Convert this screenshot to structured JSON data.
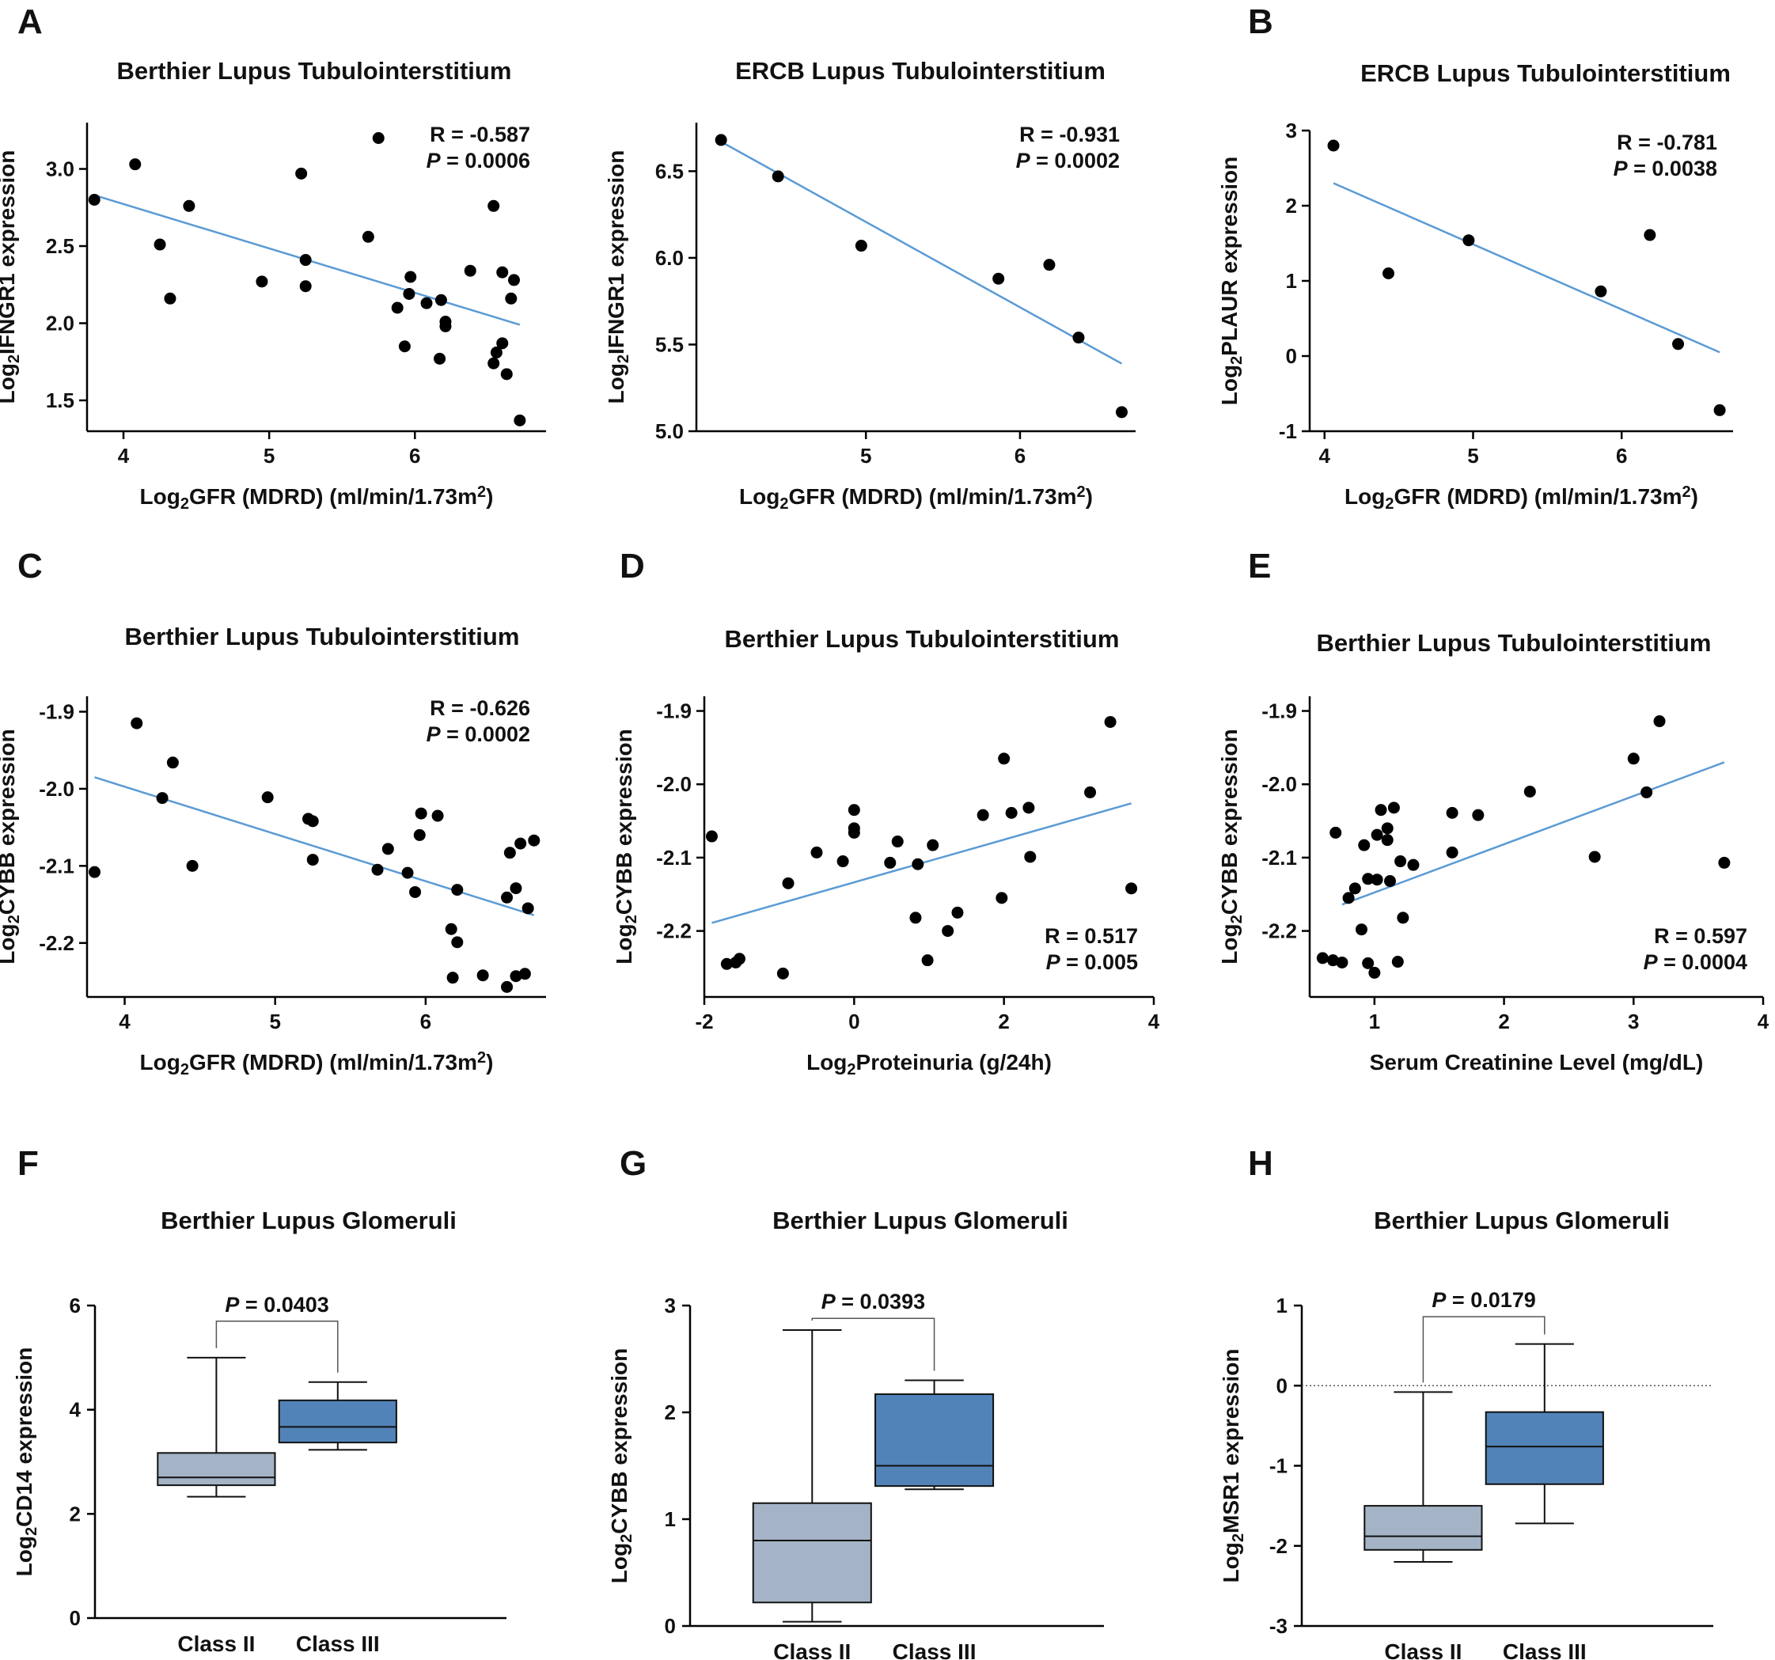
{
  "figure": {
    "panel_labels": [
      "A",
      "B",
      "C",
      "D",
      "E",
      "F",
      "G",
      "H"
    ],
    "colors": {
      "points": "#000000",
      "fit_line": "#5b9bd5",
      "box_class2": "#a4b4c6",
      "box_class3": "#5283b8",
      "axis": "#000000"
    }
  },
  "chart_data": [
    {
      "id": "A1",
      "type": "scatter",
      "panel_label": "A",
      "title_a": "Berthier Lupus ",
      "title_b": "Tubulointerstitium",
      "xlabel": "GFR (MDRD) (ml/min/1.73m",
      "xlabel_prefix": "Log",
      "xlabel_sub": "2",
      "xlabel_sup": "2",
      "xlabel_suffix": ")",
      "ylabel": "IFNGR1 expression",
      "ylabel_prefix": "Log",
      "ylabel_sub": "2",
      "xlim": [
        3.75,
        6.9
      ],
      "ylim": [
        1.3,
        3.3
      ],
      "xticks": [
        4,
        5,
        6
      ],
      "xtick_labels": [
        "4",
        "5",
        "6"
      ],
      "yticks": [
        1.5,
        2.0,
        2.5,
        3.0
      ],
      "ytick_labels": [
        "1.5",
        "2.0",
        "2.5",
        "3.0"
      ],
      "stat_r": "R = -0.587",
      "stat_p_label": "P",
      "stat_p_value": " = 0.0006",
      "fit": [
        [
          3.8,
          2.83
        ],
        [
          6.72,
          1.99
        ]
      ],
      "points": [
        [
          3.8,
          2.8
        ],
        [
          4.08,
          3.03
        ],
        [
          4.25,
          2.51
        ],
        [
          4.32,
          2.16
        ],
        [
          4.45,
          2.76
        ],
        [
          4.95,
          2.27
        ],
        [
          5.22,
          2.97
        ],
        [
          5.25,
          2.41
        ],
        [
          5.25,
          2.24
        ],
        [
          5.68,
          2.56
        ],
        [
          5.75,
          3.2
        ],
        [
          5.88,
          2.1
        ],
        [
          5.93,
          1.85
        ],
        [
          5.96,
          2.19
        ],
        [
          5.97,
          2.3
        ],
        [
          6.08,
          2.13
        ],
        [
          6.17,
          1.77
        ],
        [
          6.18,
          2.15
        ],
        [
          6.21,
          2.01
        ],
        [
          6.21,
          1.98
        ],
        [
          6.38,
          2.34
        ],
        [
          6.54,
          2.76
        ],
        [
          6.54,
          1.74
        ],
        [
          6.56,
          1.81
        ],
        [
          6.6,
          2.33
        ],
        [
          6.6,
          1.87
        ],
        [
          6.63,
          1.67
        ],
        [
          6.66,
          2.16
        ],
        [
          6.68,
          2.28
        ],
        [
          6.72,
          1.37
        ]
      ]
    },
    {
      "id": "A2",
      "type": "scatter",
      "panel_label": "",
      "title_a": "ERCB Lupus ",
      "title_b": "Tubulointerstitium",
      "xlabel": "GFR (MDRD) (ml/min/1.73m",
      "xlabel_prefix": "Log",
      "xlabel_sub": "2",
      "xlabel_sup": "2",
      "xlabel_suffix": ")",
      "ylabel": "IFNGR1 expression",
      "ylabel_prefix": "Log",
      "ylabel_sub": "2",
      "xlim": [
        3.9,
        6.75
      ],
      "ylim": [
        5.0,
        6.78
      ],
      "xticks": [
        5,
        6
      ],
      "xtick_labels": [
        "5",
        "6"
      ],
      "yticks": [
        5.0,
        5.5,
        6.0,
        6.5
      ],
      "ytick_labels": [
        "5.0",
        "5.5",
        "6.0",
        "6.5"
      ],
      "stat_r": "R = -0.931",
      "stat_p_label": "P",
      "stat_p_value": " = 0.0002",
      "fit": [
        [
          4.06,
          6.67
        ],
        [
          6.66,
          5.39
        ]
      ],
      "points": [
        [
          4.06,
          6.68
        ],
        [
          4.43,
          6.47
        ],
        [
          4.97,
          6.07
        ],
        [
          5.86,
          5.88
        ],
        [
          6.19,
          5.96
        ],
        [
          6.38,
          5.54
        ],
        [
          6.66,
          5.11
        ]
      ]
    },
    {
      "id": "B",
      "type": "scatter",
      "panel_label": "B",
      "title_a": "ERCB Lupus ",
      "title_b": "Tubulointerstitium",
      "xlabel": "GFR (MDRD) (ml/min/1.73m",
      "xlabel_prefix": "Log",
      "xlabel_sub": "2",
      "xlabel_sup": "2",
      "xlabel_suffix": ")",
      "ylabel": "PLAUR expression",
      "ylabel_prefix": "Log",
      "ylabel_sub": "2",
      "xlim": [
        3.9,
        6.75
      ],
      "ylim": [
        -1.0,
        3.0
      ],
      "xticks": [
        4,
        5,
        6
      ],
      "xtick_labels": [
        "4",
        "5",
        "6"
      ],
      "yticks": [
        -1,
        0,
        1,
        2,
        3
      ],
      "ytick_labels": [
        "-1",
        "0",
        "1",
        "2",
        "3"
      ],
      "stat_r": "R = -0.781",
      "stat_p_label": "P",
      "stat_p_value": " = 0.0038",
      "fit": [
        [
          4.06,
          2.3
        ],
        [
          6.66,
          0.05
        ]
      ],
      "points": [
        [
          4.06,
          2.8
        ],
        [
          4.43,
          1.1
        ],
        [
          4.97,
          1.54
        ],
        [
          5.86,
          0.86
        ],
        [
          6.19,
          1.61
        ],
        [
          6.38,
          0.16
        ],
        [
          6.66,
          -0.72
        ]
      ]
    },
    {
      "id": "C",
      "type": "scatter",
      "panel_label": "C",
      "title_a": "Berthier Lupus ",
      "title_b": "Tubulointerstitium",
      "xlabel": "GFR (MDRD) (ml/min/1.73m",
      "xlabel_prefix": "Log",
      "xlabel_sub": "2",
      "xlabel_sup": "2",
      "xlabel_suffix": ")",
      "ylabel": "CYBB expression",
      "ylabel_prefix": "Log",
      "ylabel_sub": "2",
      "xlim": [
        3.75,
        6.8
      ],
      "ylim": [
        -2.27,
        -1.88
      ],
      "xticks": [
        4,
        5,
        6
      ],
      "xtick_labels": [
        "4",
        "5",
        "6"
      ],
      "yticks": [
        -2.2,
        -2.1,
        -2.0,
        -1.9
      ],
      "ytick_labels": [
        "-2.2",
        "-2.1",
        "-2.0",
        "-1.9"
      ],
      "stat_r": "R = -0.626",
      "stat_p_label": "P",
      "stat_p_value": " = 0.0002",
      "fit": [
        [
          3.8,
          -1.985
        ],
        [
          6.72,
          -2.164
        ]
      ],
      "points": [
        [
          3.8,
          -2.108
        ],
        [
          4.08,
          -1.915
        ],
        [
          4.25,
          -2.012
        ],
        [
          4.32,
          -1.966
        ],
        [
          4.45,
          -2.1
        ],
        [
          4.95,
          -2.011
        ],
        [
          5.22,
          -2.039
        ],
        [
          5.25,
          -2.042
        ],
        [
          5.25,
          -2.092
        ],
        [
          5.68,
          -2.105
        ],
        [
          5.75,
          -2.078
        ],
        [
          5.88,
          -2.109
        ],
        [
          5.93,
          -2.134
        ],
        [
          5.96,
          -2.06
        ],
        [
          5.97,
          -2.032
        ],
        [
          6.08,
          -2.035
        ],
        [
          6.17,
          -2.182
        ],
        [
          6.18,
          -2.245
        ],
        [
          6.21,
          -2.199
        ],
        [
          6.21,
          -2.131
        ],
        [
          6.38,
          -2.242
        ],
        [
          6.54,
          -2.257
        ],
        [
          6.54,
          -2.141
        ],
        [
          6.56,
          -2.083
        ],
        [
          6.6,
          -2.129
        ],
        [
          6.6,
          -2.243
        ],
        [
          6.63,
          -2.071
        ],
        [
          6.66,
          -2.24
        ],
        [
          6.68,
          -2.155
        ],
        [
          6.72,
          -2.067
        ]
      ]
    },
    {
      "id": "D",
      "type": "scatter",
      "panel_label": "D",
      "title_a": "Berthier Lupus ",
      "title_b": "Tubulointerstitium",
      "xlabel": "Proteinuria (g/24h)",
      "xlabel_prefix": "Log",
      "xlabel_sub": "2",
      "xlabel_sup": "",
      "xlabel_suffix": "",
      "ylabel": "CYBB expression",
      "ylabel_prefix": "Log",
      "ylabel_sub": "2",
      "xlim": [
        -2.0,
        4.0
      ],
      "ylim": [
        -2.29,
        -1.88
      ],
      "xticks": [
        -2,
        0,
        2,
        4
      ],
      "xtick_labels": [
        "-2",
        "0",
        "2",
        "4"
      ],
      "yticks": [
        -2.2,
        -2.1,
        -2.0,
        -1.9
      ],
      "ytick_labels": [
        "-2.2",
        "-2.1",
        "-2.0",
        "-1.9"
      ],
      "stat_r": "R = 0.517",
      "stat_p_label": "P",
      "stat_p_value": " = 0.005",
      "fit": [
        [
          -1.9,
          -2.189
        ],
        [
          3.7,
          -2.026
        ]
      ],
      "points": [
        [
          -1.9,
          -2.071
        ],
        [
          -1.7,
          -2.245
        ],
        [
          -1.58,
          -2.243
        ],
        [
          -1.53,
          -2.238
        ],
        [
          -0.95,
          -2.258
        ],
        [
          -0.88,
          -2.135
        ],
        [
          -0.5,
          -2.093
        ],
        [
          -0.15,
          -2.105
        ],
        [
          0.0,
          -2.035
        ],
        [
          0.0,
          -2.06
        ],
        [
          0.0,
          -2.066
        ],
        [
          0.48,
          -2.107
        ],
        [
          0.58,
          -2.078
        ],
        [
          0.82,
          -2.182
        ],
        [
          0.85,
          -2.109
        ],
        [
          0.98,
          -2.24
        ],
        [
          1.05,
          -2.083
        ],
        [
          1.25,
          -2.2
        ],
        [
          1.38,
          -2.175
        ],
        [
          1.72,
          -2.042
        ],
        [
          1.97,
          -2.155
        ],
        [
          2.0,
          -1.965
        ],
        [
          2.1,
          -2.039
        ],
        [
          2.33,
          -2.032
        ],
        [
          2.35,
          -2.099
        ],
        [
          3.15,
          -2.011
        ],
        [
          3.42,
          -1.915
        ],
        [
          3.7,
          -2.142
        ]
      ]
    },
    {
      "id": "E",
      "type": "scatter",
      "panel_label": "E",
      "title_a": "Berthier Lupus ",
      "title_b": "Tubulointerstitium",
      "xlabel": "Serum Creatinine Level (mg/dL)",
      "xlabel_prefix": "",
      "xlabel_sub": "",
      "xlabel_sup": "",
      "xlabel_suffix": "",
      "ylabel": "CYBB expression",
      "ylabel_prefix": "Log",
      "ylabel_sub": "2",
      "xlim": [
        0.5,
        4.0
      ],
      "ylim": [
        -2.29,
        -1.88
      ],
      "xticks": [
        1,
        2,
        3,
        4
      ],
      "xtick_labels": [
        "1",
        "2",
        "3",
        "4"
      ],
      "yticks": [
        -2.2,
        -2.1,
        -2.0,
        -1.9
      ],
      "ytick_labels": [
        "-2.2",
        "-2.1",
        "-2.0",
        "-1.9"
      ],
      "stat_r": "R = 0.597",
      "stat_p_label": "P",
      "stat_p_value": " = 0.0004",
      "fit": [
        [
          0.75,
          -2.164
        ],
        [
          3.7,
          -1.97
        ]
      ],
      "points": [
        [
          0.6,
          -2.237
        ],
        [
          0.68,
          -2.24
        ],
        [
          0.7,
          -2.066
        ],
        [
          0.75,
          -2.243
        ],
        [
          0.8,
          -2.155
        ],
        [
          0.85,
          -2.142
        ],
        [
          0.9,
          -2.198
        ],
        [
          0.92,
          -2.083
        ],
        [
          0.95,
          -2.244
        ],
        [
          0.95,
          -2.129
        ],
        [
          1.0,
          -2.257
        ],
        [
          1.02,
          -2.069
        ],
        [
          1.02,
          -2.13
        ],
        [
          1.05,
          -2.035
        ],
        [
          1.1,
          -2.06
        ],
        [
          1.1,
          -2.076
        ],
        [
          1.12,
          -2.132
        ],
        [
          1.15,
          -2.032
        ],
        [
          1.18,
          -2.242
        ],
        [
          1.2,
          -2.105
        ],
        [
          1.22,
          -2.182
        ],
        [
          1.3,
          -2.11
        ],
        [
          1.6,
          -2.039
        ],
        [
          1.6,
          -2.093
        ],
        [
          1.8,
          -2.042
        ],
        [
          2.2,
          -2.01
        ],
        [
          2.7,
          -2.099
        ],
        [
          3.0,
          -1.965
        ],
        [
          3.1,
          -2.011
        ],
        [
          3.2,
          -1.914
        ],
        [
          3.7,
          -2.107
        ]
      ]
    },
    {
      "id": "F",
      "type": "box",
      "panel_label": "F",
      "title": "Berthier Lupus Glomeruli",
      "ylabel": "CD14 expression",
      "ylabel_prefix": "Log",
      "ylabel_sub": "2",
      "ylim": [
        0,
        6
      ],
      "yticks": [
        0,
        2,
        4,
        6
      ],
      "ytick_labels": [
        "0",
        "2",
        "4",
        "6"
      ],
      "categories": [
        "Class II",
        "Class III"
      ],
      "boxes": [
        {
          "min": 2.33,
          "q1": 2.55,
          "median": 2.7,
          "q3": 3.17,
          "max": 5.0
        },
        {
          "min": 3.23,
          "q1": 3.37,
          "median": 3.67,
          "q3": 4.18,
          "max": 4.53
        }
      ],
      "p_label": "P",
      "p_value": " = 0.0403",
      "bracket_y": 5.7,
      "zero_line": false
    },
    {
      "id": "G",
      "type": "box",
      "panel_label": "G",
      "title": "Berthier Lupus Glomeruli",
      "ylabel": "CYBB expression",
      "ylabel_prefix": "Log",
      "ylabel_sub": "2",
      "ylim": [
        0,
        3
      ],
      "yticks": [
        0,
        1,
        2,
        3
      ],
      "ytick_labels": [
        "0",
        "1",
        "2",
        "3"
      ],
      "categories": [
        "Class II",
        "Class III"
      ],
      "boxes": [
        {
          "min": 0.04,
          "q1": 0.22,
          "median": 0.8,
          "q3": 1.15,
          "max": 2.77
        },
        {
          "min": 1.28,
          "q1": 1.31,
          "median": 1.5,
          "q3": 2.17,
          "max": 2.3
        }
      ],
      "p_label": "P",
      "p_value": " = 0.0393",
      "bracket_y": 2.88,
      "zero_line": false
    },
    {
      "id": "H",
      "type": "box",
      "panel_label": "H",
      "title": "Berthier Lupus Glomeruli",
      "ylabel": "MSR1 expression",
      "ylabel_prefix": "Log",
      "ylabel_sub": "2",
      "ylim": [
        -3,
        1
      ],
      "yticks": [
        -3,
        -2,
        -1,
        0,
        1
      ],
      "ytick_labels": [
        "-3",
        "-2",
        "-1",
        "0",
        "1"
      ],
      "categories": [
        "Class II",
        "Class III"
      ],
      "boxes": [
        {
          "min": -2.2,
          "q1": -2.05,
          "median": -1.88,
          "q3": -1.5,
          "max": -0.08
        },
        {
          "min": -1.72,
          "q1": -1.23,
          "median": -0.76,
          "q3": -0.33,
          "max": 0.52
        }
      ],
      "p_label": "P",
      "p_value": " = 0.0179",
      "bracket_y": 0.86,
      "zero_line": true
    }
  ]
}
